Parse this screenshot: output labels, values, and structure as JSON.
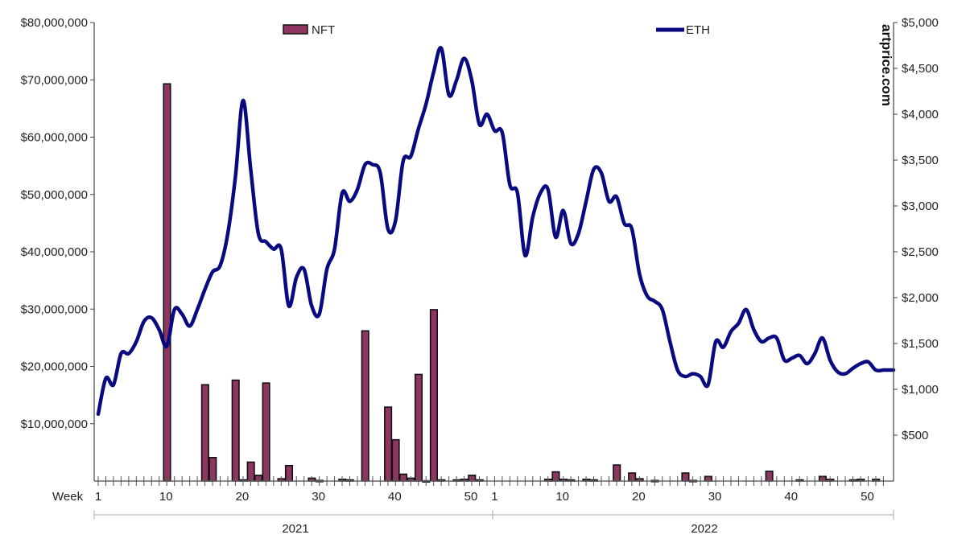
{
  "chart_data": {
    "type": "bar+line",
    "title": "",
    "xlabel": "Week",
    "watermark": "artprice.com",
    "years": [
      "2021",
      "2022"
    ],
    "week_tick_labels": [
      "1",
      "10",
      "20",
      "30",
      "40",
      "50"
    ],
    "left_axis": {
      "label": "NFT",
      "ylim": [
        0,
        80000000
      ],
      "ticks": [
        "$10,000,000",
        "$20,000,000",
        "$30,000,000",
        "$40,000,000",
        "$50,000,000",
        "$60,000,000",
        "$70,000,000",
        "$80,000,000"
      ]
    },
    "right_axis": {
      "label": "ETH",
      "ylim": [
        0,
        5000
      ],
      "ticks": [
        "$500",
        "$1,000",
        "$1,500",
        "$2,000",
        "$2,500",
        "$3,000",
        "$3,500",
        "$4,000",
        "$4,500",
        "$5,000"
      ]
    },
    "legend": [
      {
        "name": "NFT",
        "color": "#8e3561"
      },
      {
        "name": "ETH",
        "color": "#0a0a80"
      }
    ],
    "series": [
      {
        "name": "NFT",
        "type": "bar",
        "axis": "left",
        "color": "#8e3561",
        "values_2021": {
          "10": 69300000,
          "15": 16800000,
          "16": 4100000,
          "19": 17600000,
          "20": 200000,
          "21": 3300000,
          "22": 1000000,
          "23": 17100000,
          "25": 400000,
          "26": 2700000,
          "29": 500000,
          "30": 100000,
          "33": 300000,
          "34": 200000,
          "36": 26200000,
          "39": 12900000,
          "40": 7200000,
          "41": 1200000,
          "42": 500000,
          "43": 18600000,
          "44": 50000,
          "45": 29900000,
          "46": 200000,
          "48": 200000,
          "49": 300000,
          "50": 1000000,
          "51": 200000
        },
        "values_2022": {
          "8": 300000,
          "9": 1600000,
          "10": 300000,
          "11": 200000,
          "13": 300000,
          "14": 200000,
          "17": 2800000,
          "19": 1400000,
          "20": 400000,
          "22": 100000,
          "26": 1400000,
          "27": 100000,
          "29": 800000,
          "37": 1700000,
          "41": 200000,
          "44": 800000,
          "45": 300000,
          "48": 200000,
          "49": 300000,
          "51": 300000
        }
      },
      {
        "name": "ETH",
        "type": "line",
        "axis": "right",
        "color": "#0a0a80",
        "values_2021": [
          730,
          1120,
          1050,
          1390,
          1390,
          1520,
          1740,
          1780,
          1650,
          1470,
          1870,
          1820,
          1690,
          1870,
          2090,
          2280,
          2350,
          2700,
          3320,
          4150,
          3400,
          2700,
          2610,
          2530,
          2530,
          1910,
          2220,
          2310,
          1910,
          1820,
          2310,
          2530,
          3140,
          3050,
          3180,
          3450,
          3450,
          3360,
          2750,
          2840,
          3490,
          3540,
          3840,
          4110,
          4460,
          4720,
          4210,
          4370,
          4610,
          4370,
          3890,
          4000
        ],
        "values_2022": [
          3820,
          3800,
          3230,
          3140,
          2460,
          2880,
          3140,
          3180,
          2660,
          2950,
          2590,
          2700,
          3050,
          3400,
          3360,
          3050,
          3100,
          2810,
          2750,
          2260,
          2020,
          1960,
          1870,
          1520,
          1210,
          1140,
          1170,
          1140,
          1050,
          1520,
          1460,
          1630,
          1720,
          1870,
          1650,
          1520,
          1560,
          1560,
          1320,
          1340,
          1370,
          1280,
          1390,
          1560,
          1320,
          1190,
          1170,
          1230,
          1280,
          1300,
          1210,
          1210
        ]
      }
    ]
  }
}
